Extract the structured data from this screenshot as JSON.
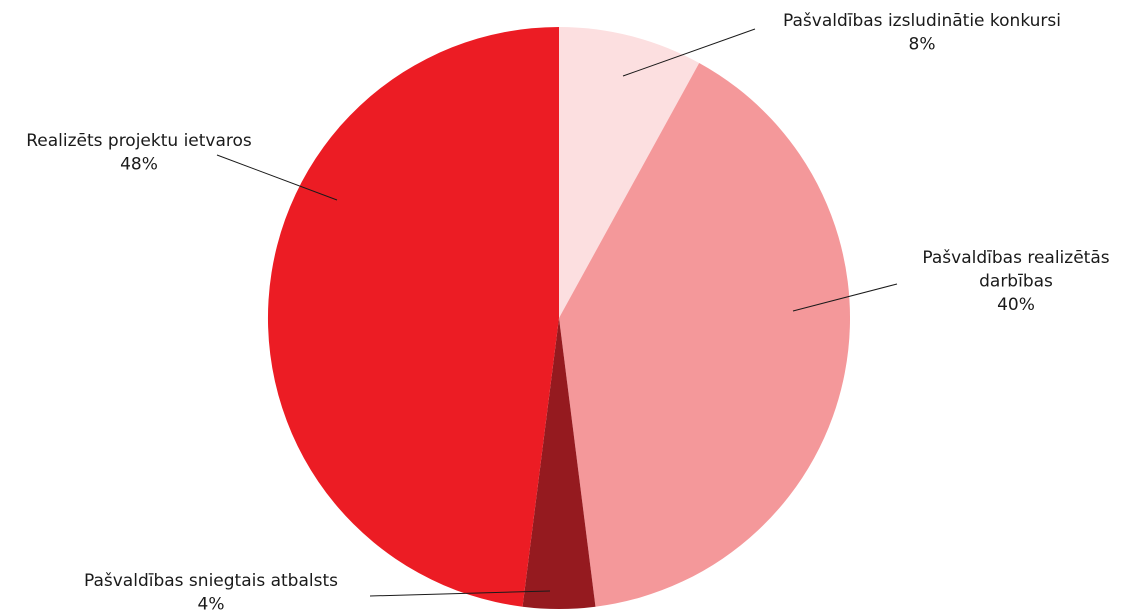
{
  "chart_data": {
    "type": "pie",
    "title": "",
    "start_angle_deg": 0,
    "direction": "clockwise",
    "slices": [
      {
        "label_lines": [
          "Pašvaldības izsludinātie konkursi"
        ],
        "value": 8,
        "value_label": "8%",
        "color": "#fcdfe0"
      },
      {
        "label_lines": [
          "Pašvaldības realizētās",
          "darbības"
        ],
        "value": 40,
        "value_label": "40%",
        "color": "#f4989a"
      },
      {
        "label_lines": [
          "Pašvaldības sniegtais atbalsts"
        ],
        "value": 4,
        "value_label": "4%",
        "color": "#951a1f"
      },
      {
        "label_lines": [
          "Realizēts projektu ietvaros"
        ],
        "value": 48,
        "value_label": "48%",
        "color": "#ec1c24"
      }
    ]
  }
}
